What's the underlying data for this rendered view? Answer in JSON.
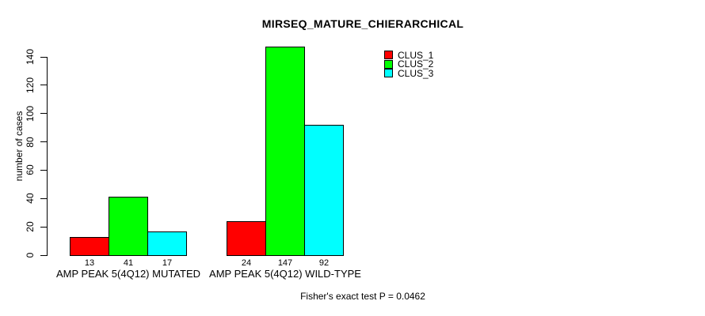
{
  "chart_data": {
    "type": "bar",
    "title": "MIRSEQ_MATURE_CHIERARCHICAL",
    "xlabel": "",
    "ylabel": "number of cases",
    "categories": [
      "AMP PEAK 5(4Q12) MUTATED",
      "AMP PEAK 5(4Q12) WILD-TYPE"
    ],
    "series": [
      {
        "name": "CLUS_1",
        "color": "#ff0000",
        "values": [
          13,
          24
        ]
      },
      {
        "name": "CLUS_2",
        "color": "#00ff00",
        "values": [
          41,
          147
        ]
      },
      {
        "name": "CLUS_3",
        "color": "#00ffff",
        "values": [
          17,
          92
        ]
      }
    ],
    "bar_value_labels": [
      [
        "13",
        "41",
        "17"
      ],
      [
        "24",
        "147",
        "92"
      ]
    ],
    "ylim": [
      0,
      140
    ],
    "yticks": [
      0,
      20,
      40,
      60,
      80,
      100,
      120,
      140
    ],
    "grid": false,
    "legend_position": "top-right",
    "legend_entries": [
      "CLUS_1",
      "CLUS_2",
      "CLUS_3"
    ],
    "annotation": "Fisher's exact test P = 0.0462",
    "background_color": "#ffffff",
    "axis_color": "#000000"
  }
}
